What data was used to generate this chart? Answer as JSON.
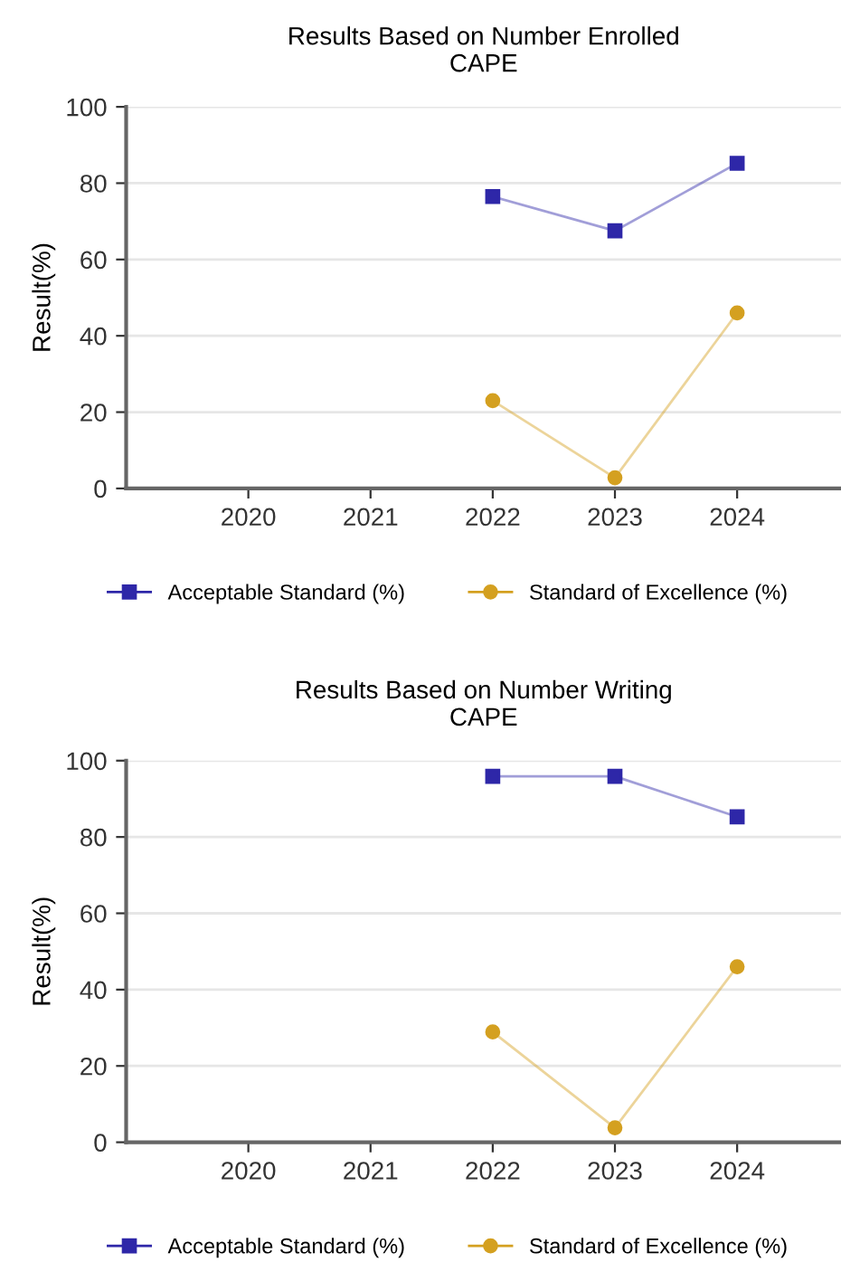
{
  "chart_data": [
    {
      "type": "line",
      "title": "Results Based on Number Enrolled\nCAPE",
      "ylabel": "Result(%)",
      "categories": [
        "2020",
        "2021",
        "2022",
        "2023",
        "2024"
      ],
      "ylim": [
        0,
        100
      ],
      "yticks": [
        0,
        20,
        40,
        60,
        80,
        100
      ],
      "grid": "y",
      "legend": "bottom",
      "series": [
        {
          "name": "Acceptable Standard (%)",
          "color": "#2e27a8",
          "marker": "square",
          "values": [
            null,
            null,
            76.5,
            67.5,
            85.2
          ]
        },
        {
          "name": "Standard of Excellence (%)",
          "color": "#d4a020",
          "marker": "circle",
          "values": [
            null,
            null,
            23,
            2.8,
            46
          ]
        }
      ]
    },
    {
      "type": "line",
      "title": "Results Based on Number Writing\nCAPE",
      "ylabel": "Result(%)",
      "categories": [
        "2020",
        "2021",
        "2022",
        "2023",
        "2024"
      ],
      "ylim": [
        0,
        100
      ],
      "yticks": [
        0,
        20,
        40,
        60,
        80,
        100
      ],
      "grid": "y",
      "legend": "bottom",
      "series": [
        {
          "name": "Acceptable Standard (%)",
          "color": "#2e27a8",
          "marker": "square",
          "values": [
            null,
            null,
            95.9,
            95.9,
            85.3
          ]
        },
        {
          "name": "Standard of Excellence (%)",
          "color": "#d4a020",
          "marker": "circle",
          "values": [
            null,
            null,
            28.9,
            3.8,
            46
          ]
        }
      ]
    }
  ]
}
